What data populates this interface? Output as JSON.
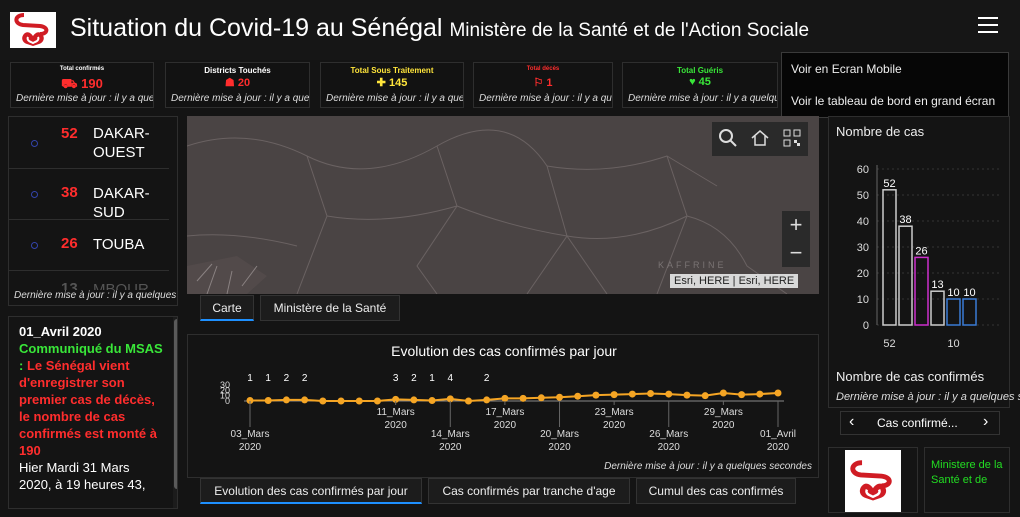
{
  "header": {
    "title": "Situation du Covid-19 au Sénégal",
    "subtitle": "Ministère de la Santé et de l'Action Sociale"
  },
  "cards": [
    {
      "label": "Total confirmés",
      "value": "190",
      "color": "#ff2d2d",
      "update": "Dernière mise à jour : il y a quelques secondes"
    },
    {
      "label": "Districts Touchés",
      "value": "20",
      "color": "#ff2d2d",
      "update": "Dernière mise à jour : il y a quelques secondes"
    },
    {
      "label": "Total Sous Traitement",
      "value": "145",
      "color": "#ffe53b",
      "update": "Dernière mise à jour : il y a quelques secondes"
    },
    {
      "label": "Total décès",
      "value": "1",
      "color": "#ff2d2d",
      "update": "Dernière mise à jour : il y a quelques secondes"
    },
    {
      "label": "Total Guéris",
      "value": "45",
      "color": "#39e639",
      "update": "Dernière mise à jour : il y a quelques secondes"
    }
  ],
  "menu": {
    "item1": "Voir en Ecran Mobile",
    "item2": "Voir le tableau de bord en grand écran"
  },
  "districts": {
    "items": [
      {
        "count": "52",
        "name": "DAKAR-OUEST"
      },
      {
        "count": "38",
        "name": "DAKAR-SUD"
      },
      {
        "count": "26",
        "name": "TOUBA"
      },
      {
        "count": "13",
        "name": "MBOUR"
      }
    ],
    "update": "Dernière mise à jour : il y a quelques secondes"
  },
  "communique": {
    "date": "01_Avril 2020",
    "label": "Communiqué du MSAS",
    "sep": " : ",
    "alert": "Le Sénégal vient d'enregistrer son premier cas de décès, le nombre de cas confirmés est monté à 190",
    "body": "Hier Mardi 31 Mars 2020, à 19 heures 43,"
  },
  "map": {
    "attribution": "Esri, HERE | Esri, HERE",
    "place_label": "KAFFRINE",
    "zoom_in": "+",
    "zoom_out": "−"
  },
  "map_tabs": {
    "carte": "Carte",
    "ministere": "Ministère de la Santé"
  },
  "line_chart": {
    "title": "Evolution des cas confirmés par jour",
    "update": "Dernière mise à jour : il y a quelques secondes",
    "ytick_labels": [
      "30",
      "20",
      "10",
      "0"
    ],
    "color": "#f5a524"
  },
  "bottom_tabs": {
    "evolution": "Evolution des cas confirmés par jour",
    "tranche": "Cas confirmés par tranche d'age",
    "cumul": "Cumul des cas confirmés"
  },
  "bar_chart": {
    "title": "Nombre de cas",
    "footer": "Nombre de cas confirmés",
    "update": "Dernière mise à jour : il y a quelques secondes",
    "ytick_labels": [
      "60",
      "50",
      "40",
      "30",
      "20",
      "10",
      "0"
    ],
    "xtick_labels": [
      "52",
      "10"
    ],
    "nav_label": "Cas confirmé...",
    "prev": "‹",
    "next": "›"
  },
  "ministry_panel": {
    "text": "Ministere de la Santé et de"
  },
  "chart_data": [
    {
      "type": "line",
      "title": "Evolution des cas confirmés par jour",
      "x": [
        "03_Mars 2020",
        "04_Mars 2020",
        "05_Mars 2020",
        "06_Mars 2020",
        "07_Mars 2020",
        "08_Mars 2020",
        "09_Mars 2020",
        "10_Mars 2020",
        "11_Mars 2020",
        "12_Mars 2020",
        "13_Mars 2020",
        "14_Mars 2020",
        "15_Mars 2020",
        "16_Mars 2020",
        "17_Mars 2020",
        "18_Mars 2020",
        "19_Mars 2020",
        "20_Mars 2020",
        "21_Mars 2020",
        "22_Mars 2020",
        "23_Mars 2020",
        "24_Mars 2020",
        "25_Mars 2020",
        "26_Mars 2020",
        "27_Mars 2020",
        "28_Mars 2020",
        "29_Mars 2020",
        "30_Mars 2020",
        "31_Mars 2020",
        "01_Avril 2020"
      ],
      "xtick_labels": [
        "03_Mars 2020",
        "11_Mars 2020",
        "14_Mars 2020",
        "17_Mars 2020",
        "20_Mars 2020",
        "23_Mars 2020",
        "26_Mars 2020",
        "29_Mars 2020",
        "01_Avril 2020"
      ],
      "labeled_points": [
        {
          "x": "03_Mars 2020",
          "label": "1"
        },
        {
          "x": "04_Mars 2020",
          "label": "1"
        },
        {
          "x": "05_Mars 2020",
          "label": "2"
        },
        {
          "x": "06_Mars 2020",
          "label": "2"
        },
        {
          "x": "11_Mars 2020",
          "label": "3"
        },
        {
          "x": "12_Mars 2020",
          "label": "2"
        },
        {
          "x": "13_Mars 2020",
          "label": "1"
        },
        {
          "x": "14_Mars 2020",
          "label": "4"
        },
        {
          "x": "16_Mars 2020",
          "label": "2"
        }
      ],
      "y": [
        1,
        1,
        2,
        2,
        0,
        0,
        0,
        0,
        3,
        2,
        1,
        4,
        0,
        2,
        5,
        5,
        6,
        7,
        9,
        11,
        12,
        13,
        14,
        13,
        11,
        10,
        15,
        12,
        13,
        15
      ],
      "ylim": [
        0,
        30
      ]
    },
    {
      "type": "bar",
      "title": "Nombre de cas",
      "values": [
        52,
        38,
        26,
        13,
        10,
        10
      ],
      "bar_colors": [
        "#cccccc",
        "#cccccc",
        "#cc2ecc",
        "#cccccc",
        "#3a7bd5",
        "#3a7bd5"
      ],
      "ylim": [
        0,
        60
      ],
      "xtick_labels": [
        "52",
        "10"
      ],
      "xlabel": "Nombre de cas confirmés"
    }
  ]
}
